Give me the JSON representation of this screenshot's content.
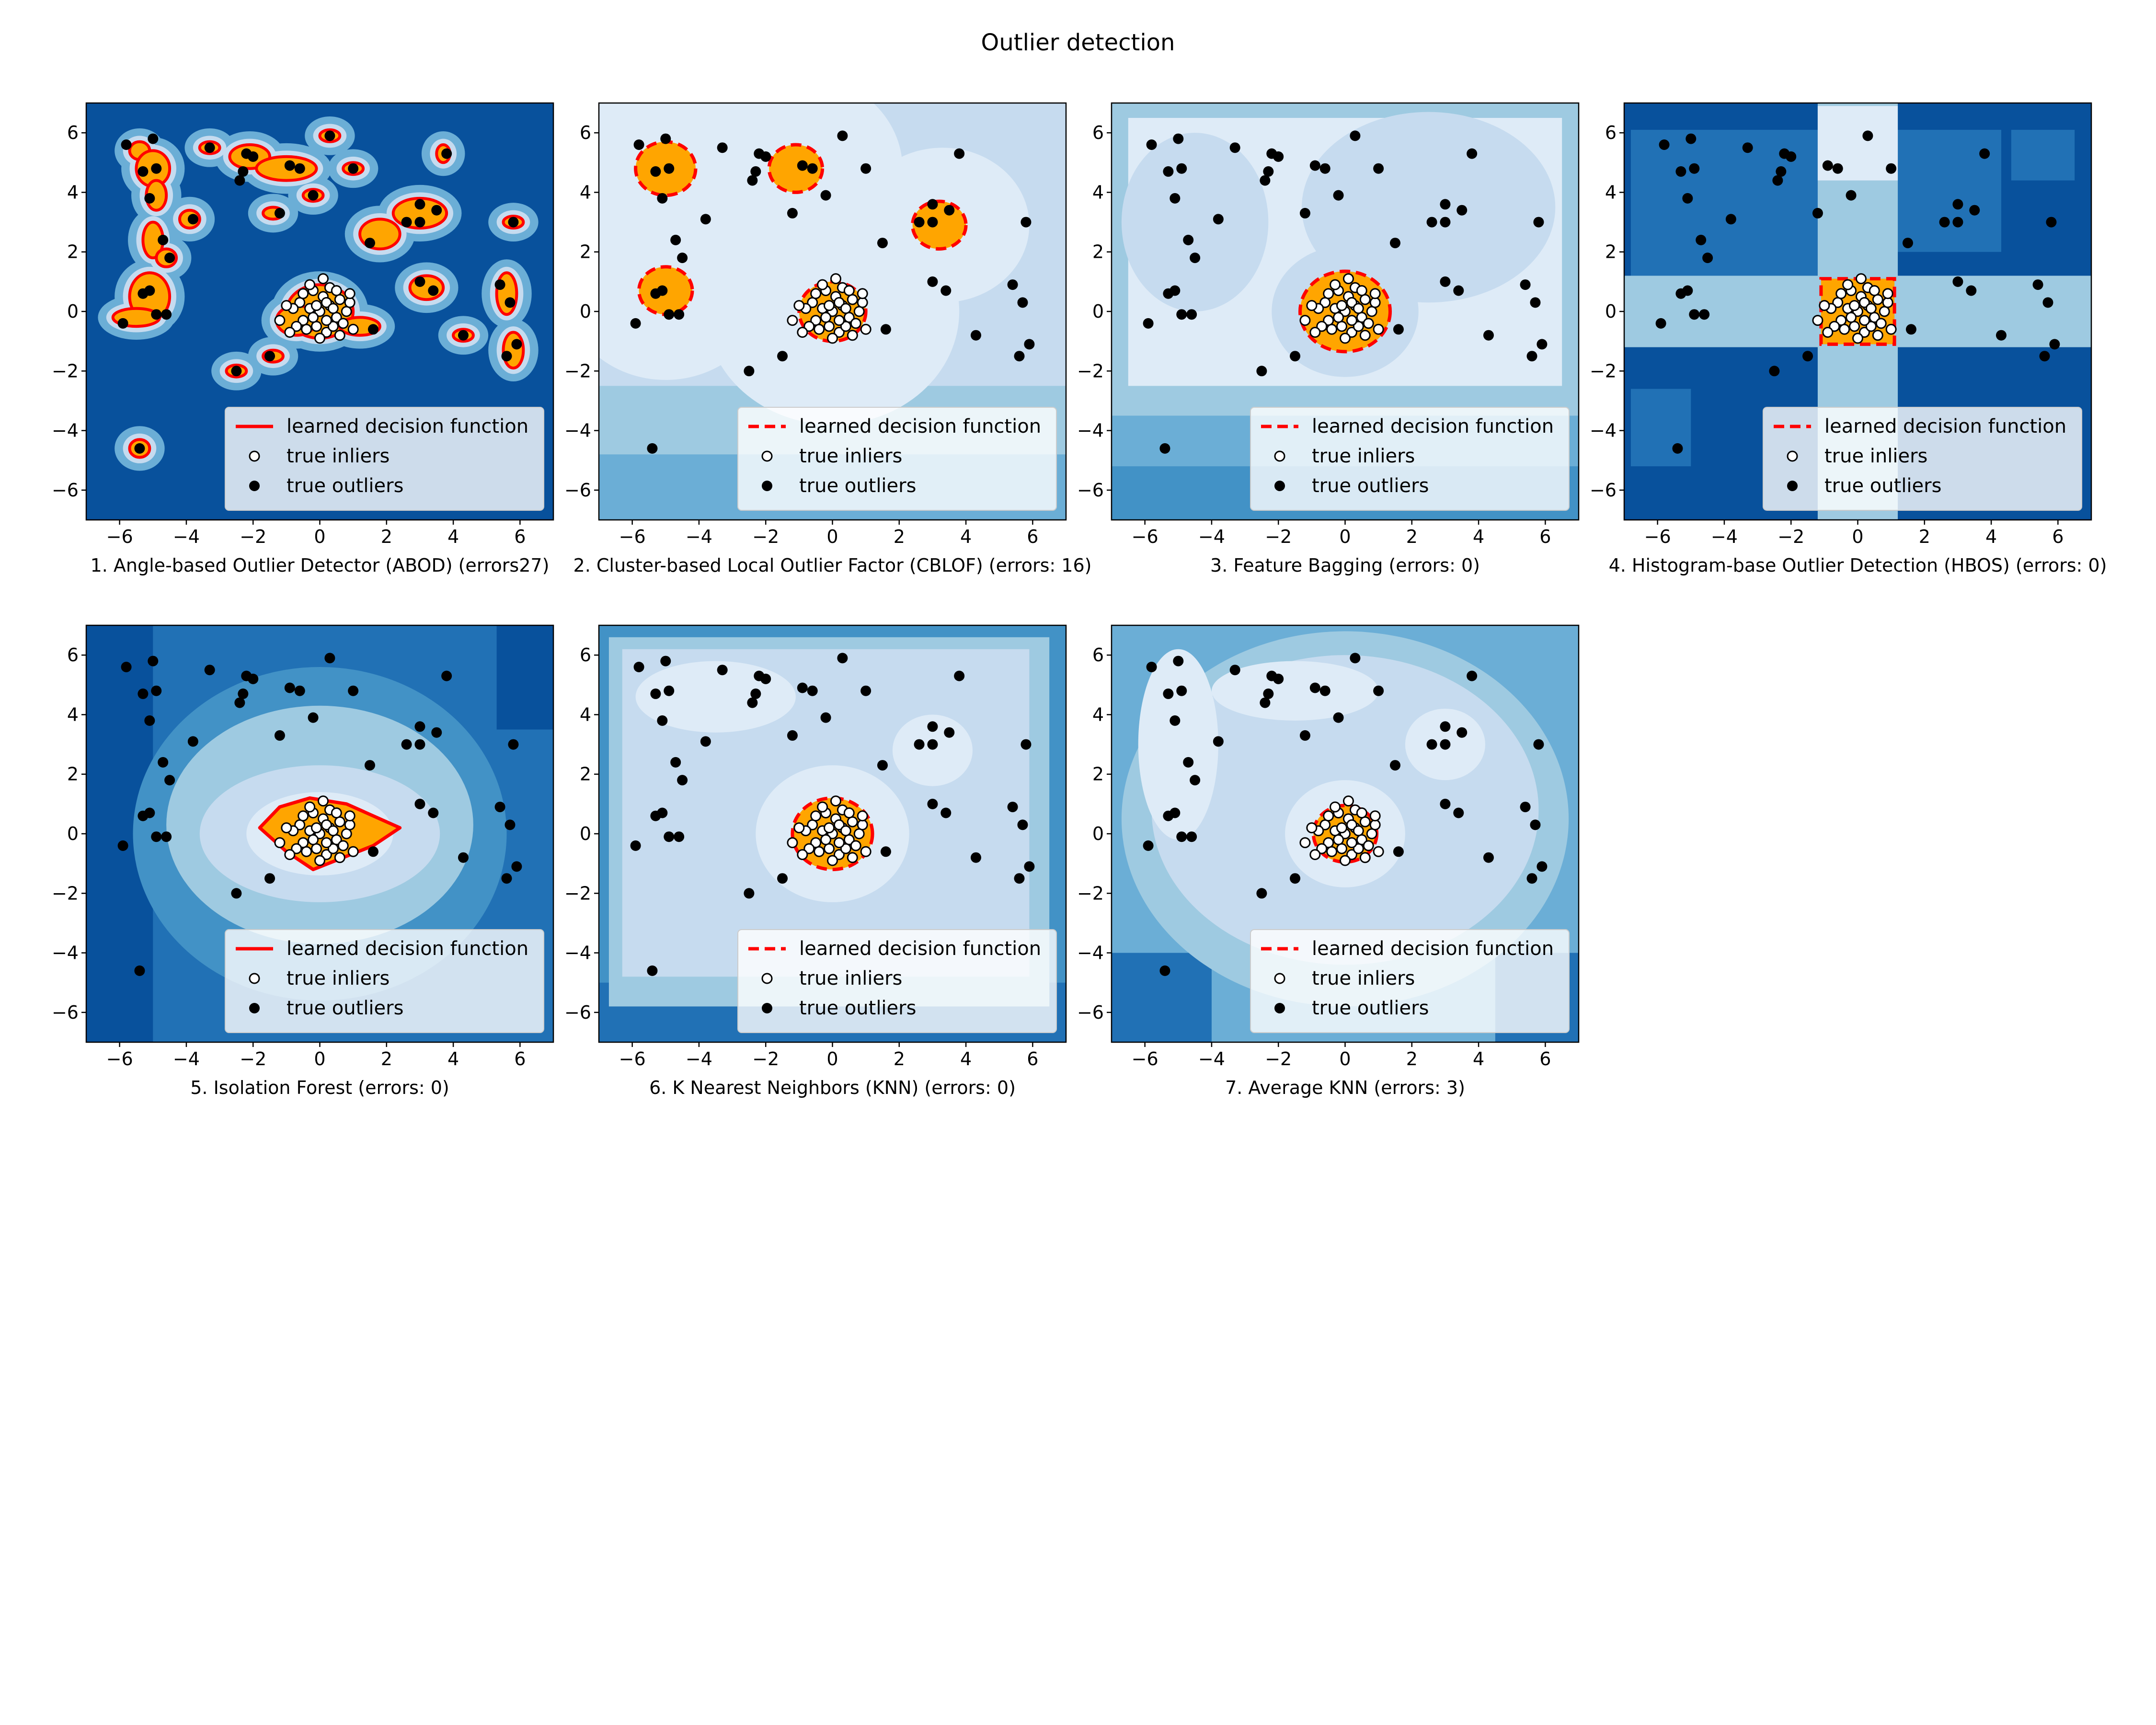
{
  "figure": {
    "title": "Outlier detection"
  },
  "legend": {
    "decision": "learned decision function",
    "inliers": "true inliers",
    "outliers": "true outliers"
  },
  "colors": {
    "outside": "#08519c",
    "blues": [
      "#08519c",
      "#2171b5",
      "#4292c6",
      "#6baed6",
      "#9ecae1",
      "#c6dbef",
      "#deebf7",
      "#eef5fc"
    ],
    "inside": "#ffa500",
    "boundary": "#ff0000",
    "inlier_face": "#ffffff",
    "outlier_face": "#000000"
  },
  "chart_data": [
    {
      "type": "scatter",
      "id": 1,
      "title": "1. Angle-based Outlier Detector (ABOD) (errors27)",
      "boundary_style": "solid",
      "xlim": [
        -7,
        7
      ],
      "ylim": [
        -7,
        7
      ],
      "xticks": [
        -6,
        -4,
        -2,
        0,
        2,
        4,
        6
      ],
      "yticks": [
        -6,
        -4,
        -2,
        0,
        2,
        4,
        6
      ]
    },
    {
      "type": "scatter",
      "id": 2,
      "title": "2. Cluster-based Local Outlier Factor (CBLOF) (errors: 16)",
      "boundary_style": "dashed",
      "xlim": [
        -7,
        7
      ],
      "ylim": [
        -7,
        7
      ],
      "xticks": [
        -6,
        -4,
        -2,
        0,
        2,
        4,
        6
      ],
      "yticks": [
        -6,
        -4,
        -2,
        0,
        2,
        4,
        6
      ]
    },
    {
      "type": "scatter",
      "id": 3,
      "title": "3. Feature Bagging (errors: 0)",
      "boundary_style": "dashed",
      "xlim": [
        -7,
        7
      ],
      "ylim": [
        -7,
        7
      ],
      "xticks": [
        -6,
        -4,
        -2,
        0,
        2,
        4,
        6
      ],
      "yticks": [
        -6,
        -4,
        -2,
        0,
        2,
        4,
        6
      ]
    },
    {
      "type": "scatter",
      "id": 4,
      "title": "4. Histogram-base Outlier Detection (HBOS) (errors: 0)",
      "boundary_style": "dashed",
      "xlim": [
        -7,
        7
      ],
      "ylim": [
        -7,
        7
      ],
      "xticks": [
        -6,
        -4,
        -2,
        0,
        2,
        4,
        6
      ],
      "yticks": [
        -6,
        -4,
        -2,
        0,
        2,
        4,
        6
      ]
    },
    {
      "type": "scatter",
      "id": 5,
      "title": "5. Isolation Forest (errors: 0)",
      "boundary_style": "solid",
      "xlim": [
        -7,
        7
      ],
      "ylim": [
        -7,
        7
      ],
      "xticks": [
        -6,
        -4,
        -2,
        0,
        2,
        4,
        6
      ],
      "yticks": [
        -6,
        -4,
        -2,
        0,
        2,
        4,
        6
      ]
    },
    {
      "type": "scatter",
      "id": 6,
      "title": "6. K Nearest Neighbors (KNN) (errors: 0)",
      "boundary_style": "dashed",
      "xlim": [
        -7,
        7
      ],
      "ylim": [
        -7,
        7
      ],
      "xticks": [
        -6,
        -4,
        -2,
        0,
        2,
        4,
        6
      ],
      "yticks": [
        -6,
        -4,
        -2,
        0,
        2,
        4,
        6
      ]
    },
    {
      "type": "scatter",
      "id": 7,
      "title": "7. Average KNN (errors: 3)",
      "boundary_style": "dashed",
      "xlim": [
        -7,
        7
      ],
      "ylim": [
        -7,
        7
      ],
      "xticks": [
        -6,
        -4,
        -2,
        0,
        2,
        4,
        6
      ],
      "yticks": [
        -6,
        -4,
        -2,
        0,
        2,
        4,
        6
      ]
    }
  ],
  "outliers": [
    [
      -5.8,
      5.6
    ],
    [
      -5.0,
      5.8
    ],
    [
      -5.3,
      4.7
    ],
    [
      -4.9,
      4.8
    ],
    [
      -5.1,
      3.8
    ],
    [
      -3.3,
      5.5
    ],
    [
      -2.2,
      5.3
    ],
    [
      -2.0,
      5.2
    ],
    [
      -2.3,
      4.7
    ],
    [
      -2.4,
      4.4
    ],
    [
      -0.9,
      4.9
    ],
    [
      -0.6,
      4.8
    ],
    [
      0.3,
      5.9
    ],
    [
      1.0,
      4.8
    ],
    [
      3.8,
      5.3
    ],
    [
      -3.8,
      3.1
    ],
    [
      -0.2,
      3.9
    ],
    [
      3.0,
      3.6
    ],
    [
      3.5,
      3.4
    ],
    [
      -1.2,
      3.3
    ],
    [
      5.8,
      3.0
    ],
    [
      2.6,
      3.0
    ],
    [
      3.0,
      3.0
    ],
    [
      1.5,
      2.3
    ],
    [
      -4.7,
      2.4
    ],
    [
      -4.5,
      1.8
    ],
    [
      -5.3,
      0.6
    ],
    [
      -5.1,
      0.7
    ],
    [
      -5.9,
      -0.4
    ],
    [
      -4.9,
      -0.1
    ],
    [
      -4.6,
      -0.1
    ],
    [
      3.0,
      1.0
    ],
    [
      3.4,
      0.7
    ],
    [
      5.4,
      0.9
    ],
    [
      5.7,
      0.3
    ],
    [
      1.6,
      -0.6
    ],
    [
      4.3,
      -0.8
    ],
    [
      5.9,
      -1.1
    ],
    [
      -1.5,
      -1.5
    ],
    [
      5.6,
      -1.5
    ],
    [
      -2.5,
      -2.0
    ],
    [
      -5.4,
      -4.6
    ]
  ],
  "inliers": [
    [
      0.0,
      0.0
    ],
    [
      0.3,
      0.2
    ],
    [
      -0.3,
      0.1
    ],
    [
      0.5,
      -0.2
    ],
    [
      -0.5,
      -0.3
    ],
    [
      0.1,
      0.5
    ],
    [
      -0.1,
      -0.5
    ],
    [
      0.6,
      0.4
    ],
    [
      -0.6,
      0.3
    ],
    [
      0.2,
      -0.7
    ],
    [
      -0.2,
      0.7
    ],
    [
      0.8,
      0.0
    ],
    [
      -0.8,
      0.1
    ],
    [
      0.4,
      -0.5
    ],
    [
      -0.4,
      -0.6
    ],
    [
      0.7,
      -0.4
    ],
    [
      -0.7,
      -0.5
    ],
    [
      0.3,
      0.8
    ],
    [
      -0.3,
      0.9
    ],
    [
      0.9,
      0.3
    ],
    [
      0.1,
      1.1
    ],
    [
      -1.0,
      0.2
    ],
    [
      1.0,
      -0.6
    ],
    [
      0.0,
      -0.9
    ],
    [
      0.5,
      0.7
    ],
    [
      -0.5,
      0.6
    ],
    [
      0.2,
      0.3
    ],
    [
      -0.2,
      -0.2
    ],
    [
      0.6,
      -0.8
    ],
    [
      -1.2,
      -0.3
    ],
    [
      0.9,
      0.6
    ],
    [
      -0.9,
      -0.7
    ],
    [
      0.4,
      0.1
    ],
    [
      -0.1,
      0.2
    ],
    [
      0.2,
      -0.3
    ]
  ]
}
